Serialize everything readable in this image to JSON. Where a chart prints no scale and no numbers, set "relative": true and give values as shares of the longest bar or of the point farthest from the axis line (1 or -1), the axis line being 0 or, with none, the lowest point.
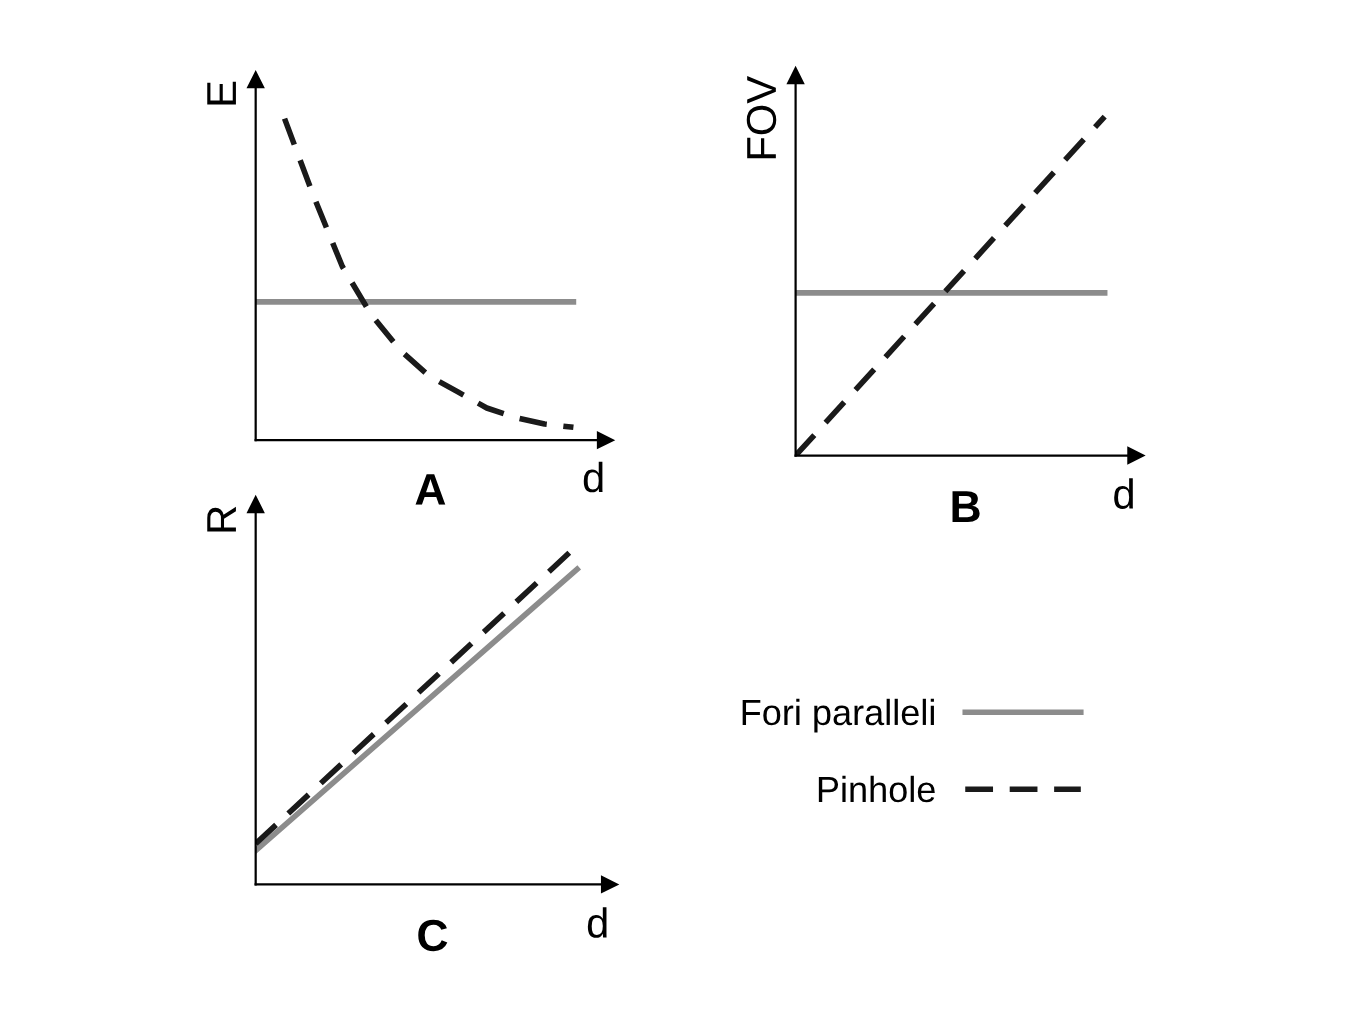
{
  "chart_data": [
    {
      "type": "line",
      "title": "A",
      "ylabel": "E",
      "xlabel": "d",
      "relative": true,
      "grid": false,
      "legend": false,
      "categories": [
        null,
        null,
        null,
        null,
        null,
        null,
        null,
        null,
        null,
        null,
        null,
        null
      ],
      "series": [
        {
          "color": "#8c8c8c",
          "line_style": "solid",
          "values": [
            0.43,
            0.43,
            0.43,
            0.43,
            0.43,
            0.43,
            0.43,
            0.43,
            0.43,
            0.43,
            0.43,
            0.43
          ]
        },
        {
          "color": "#1a1a1a",
          "line_style": "dashed",
          "values": [
            null,
            1,
            0.76,
            0.54,
            0.39,
            0.28,
            0.2,
            0.15,
            0.1,
            0.07,
            0.05,
            0.04
          ]
        }
      ]
    },
    {
      "type": "line",
      "title": "B",
      "ylabel": "FOV",
      "xlabel": "d",
      "relative": true,
      "grid": false,
      "legend": false,
      "categories": [
        null,
        null
      ],
      "series": [
        {
          "color": "#8c8c8c",
          "line_style": "solid",
          "values": [
            0.48,
            0.48
          ]
        },
        {
          "color": "#1a1a1a",
          "line_style": "dashed",
          "values": [
            0,
            1
          ]
        }
      ]
    },
    {
      "type": "line",
      "title": "C",
      "ylabel": "R",
      "xlabel": "d",
      "relative": true,
      "grid": false,
      "legend": "right",
      "categories": [
        null,
        null
      ],
      "series": [
        {
          "name": "Fori paralleli",
          "color": "#8c8c8c",
          "line_style": "solid",
          "values": [
            0.1,
            0.93
          ]
        },
        {
          "name": "Pinhole",
          "color": "#1a1a1a",
          "line_style": "dashed",
          "values": [
            0.12,
            1
          ]
        }
      ]
    }
  ]
}
